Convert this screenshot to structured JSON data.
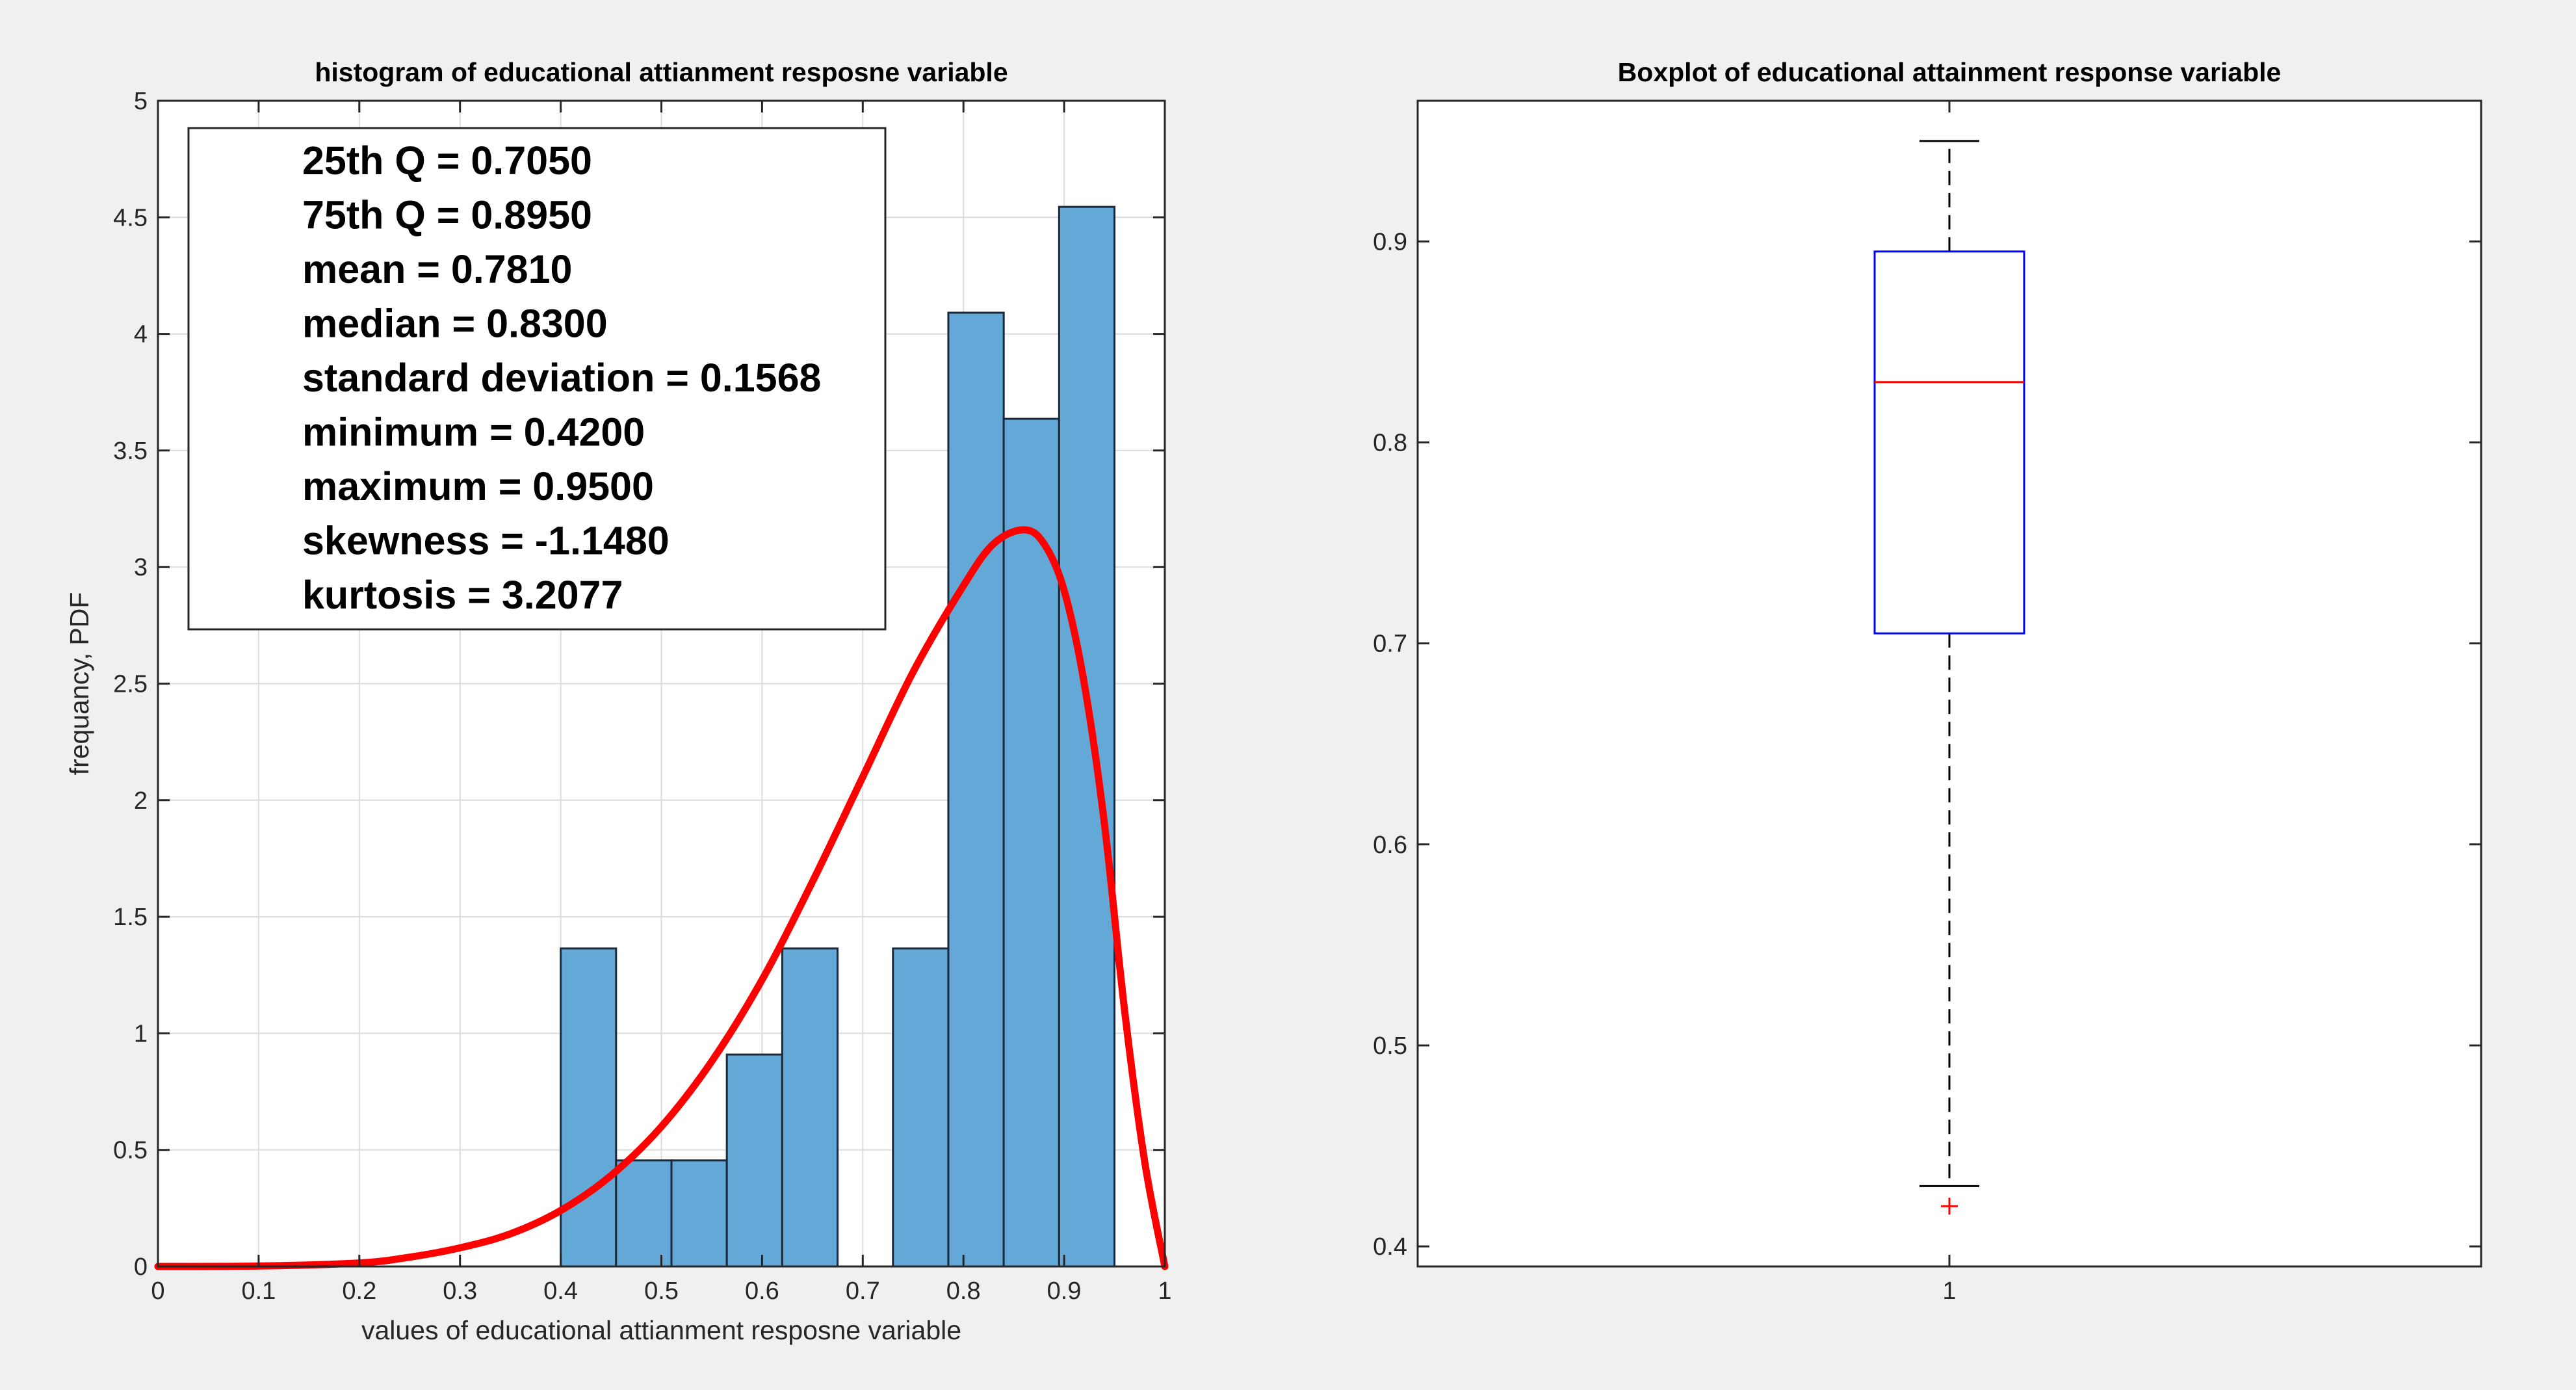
{
  "colors": {
    "figure_bg": "#f0f0f0",
    "axes_bg": "#ffffff",
    "bar_fill": "#64a8d8",
    "bar_edge": "#1b2a3a",
    "curve": "#ff0000",
    "box_edge": "#0000ff",
    "median": "#ff0000",
    "whisker": "#000000",
    "outlier": "#ff0000",
    "grid": "#dcdcdc",
    "axis": "#262626"
  },
  "chart_data": [
    {
      "type": "bar",
      "title": "histogram of educational attianment resposne variable",
      "xlabel": "values of educational attianment resposne variable",
      "ylabel": "frequancy, PDF",
      "xlim": [
        0,
        1
      ],
      "ylim": [
        0,
        5
      ],
      "grid": true,
      "xticks": [
        0,
        0.1,
        0.2,
        0.3,
        0.4,
        0.5,
        0.6,
        0.7,
        0.8,
        0.9,
        1
      ],
      "xtick_labels": [
        "0",
        "0.1",
        "0.2",
        "0.3",
        "0.4",
        "0.5",
        "0.6",
        "0.7",
        "0.8",
        "0.9",
        "1"
      ],
      "yticks": [
        0,
        0.5,
        1,
        1.5,
        2,
        2.5,
        3,
        3.5,
        4,
        4.5,
        5
      ],
      "ytick_labels": [
        "0",
        "0.5",
        "1",
        "1.5",
        "2",
        "2.5",
        "3",
        "3.5",
        "4",
        "4.5",
        "5"
      ],
      "bin_edges": [
        0.4,
        0.455,
        0.51,
        0.565,
        0.62,
        0.675,
        0.73,
        0.785,
        0.84,
        0.895,
        0.95
      ],
      "values": [
        1.364,
        0.455,
        0.455,
        0.909,
        1.364,
        0,
        1.364,
        4.091,
        3.636,
        4.545
      ],
      "curve": {
        "name": "PDF",
        "x": [
          0,
          0.1,
          0.2,
          0.25,
          0.3,
          0.35,
          0.4,
          0.45,
          0.5,
          0.55,
          0.6,
          0.65,
          0.7,
          0.75,
          0.8,
          0.83,
          0.86,
          0.88,
          0.9,
          0.92,
          0.94,
          0.96,
          0.98,
          1.0
        ],
        "y": [
          0,
          0.002,
          0.015,
          0.04,
          0.08,
          0.14,
          0.24,
          0.39,
          0.6,
          0.88,
          1.23,
          1.65,
          2.1,
          2.55,
          2.92,
          3.1,
          3.16,
          3.1,
          2.9,
          2.5,
          1.9,
          1.1,
          0.45,
          0
        ]
      },
      "annotation": {
        "lines": [
          "25th Q = 0.7050",
          "75th Q = 0.8950",
          "mean = 0.7810",
          "median = 0.8300",
          "standard deviation = 0.1568",
          "minimum = 0.4200",
          "maximum = 0.9500",
          "skewness = -1.1480",
          "kurtosis = 3.2077"
        ],
        "placement": "top-left"
      }
    },
    {
      "type": "box",
      "title": "Boxplot of educational attainment response variable",
      "categories": [
        "1"
      ],
      "ylim": [
        0.39,
        0.97
      ],
      "yticks": [
        0.4,
        0.5,
        0.6,
        0.7,
        0.8,
        0.9
      ],
      "ytick_labels": [
        "0.4",
        "0.5",
        "0.6",
        "0.7",
        "0.8",
        "0.9"
      ],
      "q1": 0.705,
      "median": 0.83,
      "q3": 0.895,
      "whisker_low": 0.43,
      "whisker_high": 0.95,
      "outliers": [
        0.42
      ],
      "outlier_marker": "+"
    }
  ]
}
